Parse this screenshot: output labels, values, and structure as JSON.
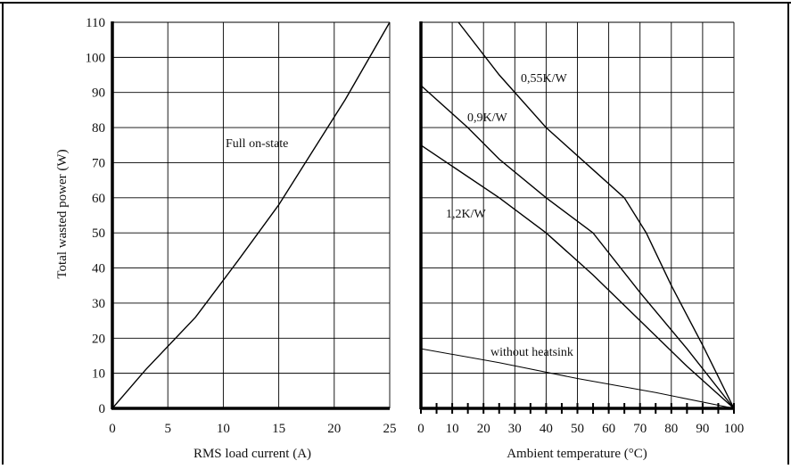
{
  "chart_data": [
    {
      "type": "line",
      "xlabel": "RMS load current (A)",
      "ylabel": "Total wasted power (W)",
      "xlim": [
        0,
        25
      ],
      "ylim": [
        0,
        110
      ],
      "x_ticks": [
        0,
        5,
        10,
        15,
        20,
        25
      ],
      "y_ticks": [
        0,
        10,
        20,
        30,
        40,
        50,
        60,
        70,
        80,
        90,
        100,
        110
      ],
      "grid": true,
      "series": [
        {
          "name": "Full on-state",
          "x": [
            0,
            3,
            7.5,
            11.3,
            15,
            18,
            21,
            25
          ],
          "y": [
            0,
            11,
            26,
            42,
            58,
            73,
            88,
            110
          ]
        }
      ],
      "annotations": [
        "Full on-state"
      ]
    },
    {
      "type": "line",
      "xlabel": "Ambient temperature (°C)",
      "ylabel": "",
      "xlim": [
        0,
        100
      ],
      "ylim": [
        0,
        110
      ],
      "x_ticks": [
        0,
        10,
        20,
        30,
        40,
        50,
        60,
        70,
        80,
        90,
        100
      ],
      "grid": true,
      "series": [
        {
          "name": "0,55K/W",
          "x": [
            12,
            25,
            40,
            55,
            65,
            72,
            80,
            90,
            100
          ],
          "y": [
            110,
            95,
            80,
            68,
            60,
            50,
            35,
            18,
            0
          ]
        },
        {
          "name": "0,9K/W",
          "x": [
            0,
            15,
            25,
            40,
            55,
            70,
            85,
            100
          ],
          "y": [
            92,
            80,
            71,
            60,
            50,
            33,
            17,
            0
          ]
        },
        {
          "name": "1,2K/W",
          "x": [
            0,
            10,
            25,
            40,
            55,
            70,
            85,
            100
          ],
          "y": [
            75,
            69,
            60,
            50,
            38,
            25,
            12,
            0
          ]
        },
        {
          "name": "without heatsink",
          "x": [
            0,
            25,
            50,
            75,
            100
          ],
          "y": [
            17,
            13,
            8.5,
            4.5,
            0
          ]
        }
      ],
      "annotations": [
        "0,55K/W",
        "0,9K/W",
        "1,2K/W",
        "without heatsink"
      ]
    }
  ]
}
